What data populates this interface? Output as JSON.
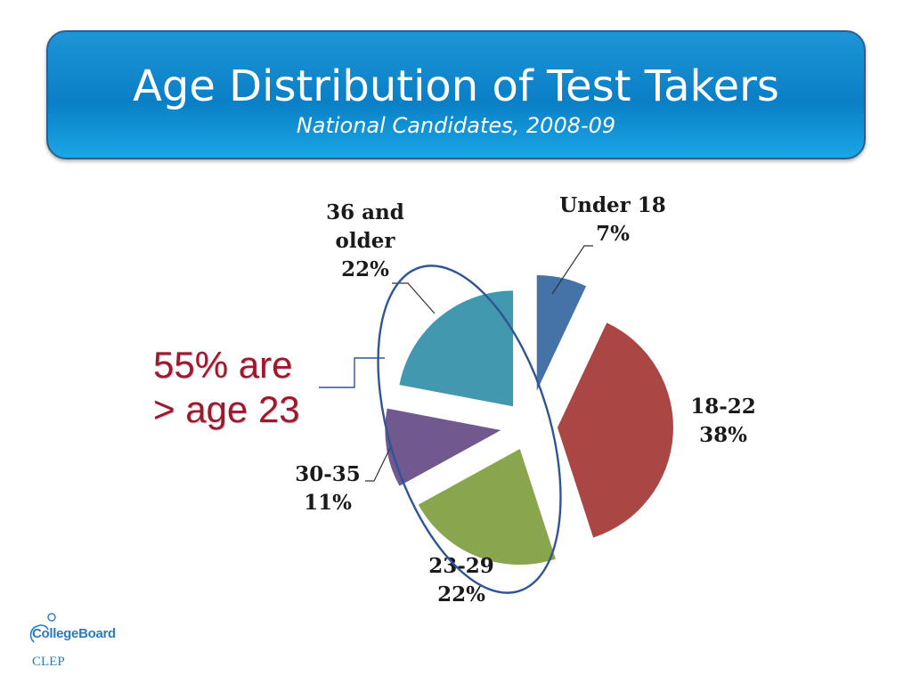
{
  "header": {
    "title": "Age Distribution of Test Takers",
    "subtitle": "National Candidates, 2008-09"
  },
  "callout": {
    "line1": "55% are",
    "line2": "> age 23",
    "color": "#a0182f"
  },
  "logo": {
    "brand": "CollegeBoard",
    "program": "CLEP"
  },
  "chart_data": {
    "type": "pie",
    "exploded": true,
    "slices": [
      {
        "label": "Under 18",
        "value": 7,
        "display": "7%",
        "color": "#4572a7"
      },
      {
        "label": "18-22",
        "value": 38,
        "display": "38%",
        "color": "#aa4643"
      },
      {
        "label": "23-29",
        "value": 22,
        "display": "22%",
        "color": "#89a54e"
      },
      {
        "label": "30-35",
        "value": 11,
        "display": "11%",
        "color": "#71588f"
      },
      {
        "label": "36 and older",
        "value": 22,
        "display": "22%",
        "color": "#4198af"
      }
    ]
  }
}
